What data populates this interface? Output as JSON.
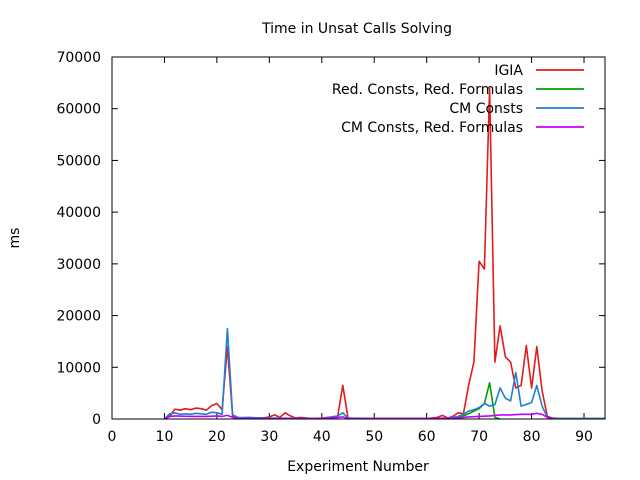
{
  "chart_data": {
    "type": "line",
    "title": "Time in Unsat Calls Solving",
    "xlabel": "Experiment Number",
    "ylabel": "ms",
    "xlim": [
      0,
      94
    ],
    "ylim": [
      0,
      70000
    ],
    "xticks": [
      0,
      10,
      20,
      30,
      40,
      50,
      60,
      70,
      80,
      90
    ],
    "yticks": [
      0,
      10000,
      20000,
      30000,
      40000,
      50000,
      60000,
      70000
    ],
    "grid": false,
    "legend_position": "top-right",
    "series": [
      {
        "name": "IGIA",
        "color": "#e41a1c",
        "x": [
          10,
          11,
          12,
          13,
          14,
          15,
          16,
          17,
          18,
          19,
          20,
          21,
          22,
          23,
          24,
          26,
          28,
          30,
          31,
          32,
          33,
          34,
          35,
          36,
          38,
          40,
          42,
          43,
          44,
          45,
          46,
          50,
          55,
          60,
          62,
          63,
          64,
          65,
          66,
          67,
          68,
          69,
          70,
          71,
          72,
          73,
          74,
          75,
          76,
          77,
          78,
          79,
          80,
          81,
          82,
          83,
          84,
          86,
          88,
          90,
          92,
          94
        ],
        "y": [
          0,
          500,
          1900,
          1700,
          2000,
          1800,
          2100,
          2000,
          1700,
          2600,
          3000,
          1800,
          14000,
          600,
          200,
          300,
          100,
          400,
          800,
          300,
          1200,
          600,
          200,
          300,
          100,
          200,
          400,
          300,
          6500,
          200,
          100,
          100,
          100,
          100,
          300,
          700,
          200,
          500,
          1200,
          1000,
          6500,
          11000,
          30500,
          29000,
          64000,
          11000,
          18000,
          12000,
          11000,
          6000,
          6500,
          14200,
          6000,
          14000,
          5500,
          500,
          200,
          100,
          100,
          100,
          100,
          100
        ]
      },
      {
        "name": "Red. Consts, Red. Formulas",
        "color": "#00a000",
        "x": [
          64,
          65,
          66,
          67,
          68,
          69,
          70,
          71,
          72,
          73,
          74
        ],
        "y": [
          0,
          100,
          300,
          600,
          1000,
          1500,
          2000,
          3000,
          7000,
          300,
          0
        ]
      },
      {
        "name": "CM Consts",
        "color": "#1f7fd0",
        "x": [
          10,
          11,
          12,
          13,
          14,
          15,
          16,
          17,
          18,
          19,
          20,
          21,
          22,
          23,
          24,
          30,
          40,
          43,
          44,
          45,
          50,
          60,
          64,
          66,
          67,
          68,
          69,
          70,
          71,
          72,
          73,
          74,
          75,
          76,
          77,
          78,
          79,
          80,
          81,
          82,
          83,
          84,
          88,
          94
        ],
        "y": [
          0,
          1000,
          1200,
          900,
          1000,
          900,
          1100,
          1000,
          900,
          1300,
          1200,
          900,
          17500,
          800,
          300,
          200,
          100,
          600,
          1200,
          200,
          100,
          100,
          200,
          500,
          900,
          1500,
          1800,
          2200,
          3000,
          2500,
          2800,
          6000,
          4000,
          3500,
          9000,
          2500,
          2800,
          3200,
          6500,
          2500,
          300,
          100,
          100,
          100
        ]
      },
      {
        "name": "CM Consts, Red. Formulas",
        "color": "#c000ff",
        "x": [
          10,
          11,
          12,
          15,
          18,
          20,
          21,
          22,
          23,
          24,
          30,
          40,
          43,
          44,
          45,
          60,
          66,
          68,
          70,
          72,
          74,
          76,
          78,
          80,
          81,
          82,
          83,
          84
        ],
        "y": [
          0,
          500,
          600,
          500,
          500,
          600,
          500,
          700,
          300,
          100,
          100,
          100,
          300,
          400,
          100,
          100,
          200,
          400,
          500,
          600,
          800,
          800,
          900,
          900,
          1100,
          900,
          300,
          0
        ]
      }
    ]
  }
}
